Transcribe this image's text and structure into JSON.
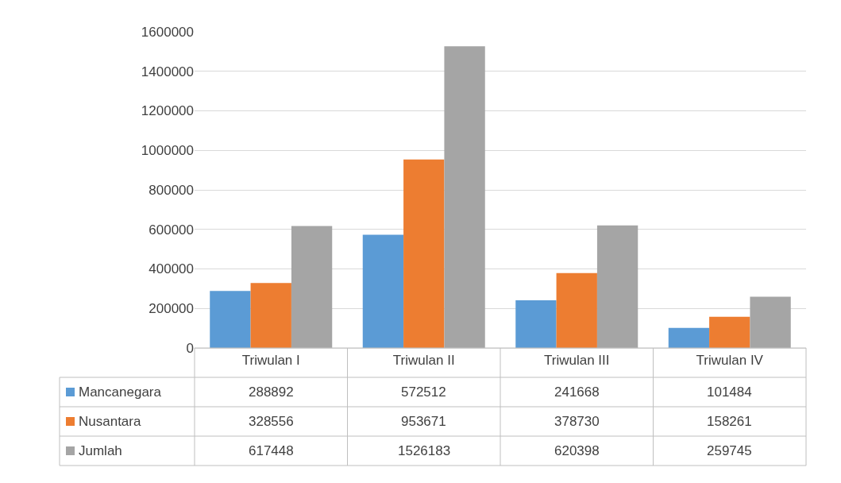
{
  "chart_data": {
    "type": "bar",
    "categories": [
      "Triwulan I",
      "Triwulan II",
      "Triwulan III",
      "Triwulan IV"
    ],
    "series": [
      {
        "name": "Mancanegara",
        "color": "#5b9bd5",
        "values": [
          288892,
          572512,
          241668,
          101484
        ]
      },
      {
        "name": "Nusantara",
        "color": "#ed7d31",
        "values": [
          328556,
          953671,
          378730,
          158261
        ]
      },
      {
        "name": "Jumlah",
        "color": "#a5a5a5",
        "values": [
          617448,
          1526183,
          620398,
          259745
        ]
      }
    ],
    "ylim": [
      0,
      1600000
    ],
    "yticks": [
      0,
      200000,
      400000,
      600000,
      800000,
      1000000,
      1200000,
      1400000,
      1600000
    ],
    "grid": "y",
    "data_labels": true,
    "legend": "bottom"
  }
}
